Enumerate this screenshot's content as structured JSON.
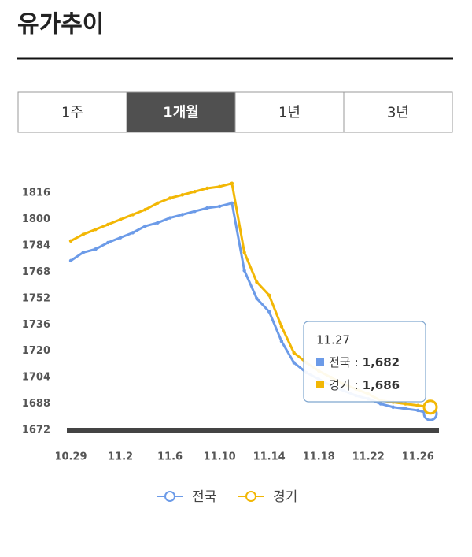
{
  "header": {
    "title": "유가추이"
  },
  "tabs": {
    "labels": [
      "1주",
      "1개월",
      "1년",
      "3년"
    ],
    "active": 1
  },
  "chart_data": {
    "type": "line",
    "categories": [
      "10.29",
      null,
      null,
      null,
      "11.2",
      null,
      null,
      null,
      "11.6",
      null,
      null,
      null,
      "11.10",
      null,
      null,
      null,
      "11.14",
      null,
      null,
      null,
      "11.18",
      null,
      null,
      null,
      "11.22",
      null,
      null,
      null,
      "11.26",
      null
    ],
    "series": [
      {
        "name": "전국",
        "color": "#6c9be8",
        "values": [
          1775,
          1780,
          1782,
          1786,
          1789,
          1792,
          1796,
          1798,
          1801,
          1803,
          1805,
          1807,
          1808,
          1810,
          1769,
          1752,
          1744,
          1726,
          1713,
          1707,
          1703,
          1699,
          1696,
          1693,
          1691,
          1688,
          1686,
          1685,
          1684,
          1682
        ]
      },
      {
        "name": "경기",
        "color": "#f2b705",
        "values": [
          1787,
          1791,
          1794,
          1797,
          1800,
          1803,
          1806,
          1810,
          1813,
          1815,
          1817,
          1819,
          1820,
          1822,
          1780,
          1762,
          1754,
          1735,
          1719,
          1713,
          1708,
          1704,
          1700,
          1697,
          1694,
          1690,
          1689,
          1688,
          1687,
          1686
        ]
      }
    ],
    "ylim": [
      1672,
      1830
    ],
    "yticks": [
      1672,
      1688,
      1704,
      1720,
      1736,
      1752,
      1768,
      1784,
      1800,
      1816
    ],
    "grid": false,
    "legend": "bottom",
    "tooltip": {
      "label": "11.27",
      "separator": ":",
      "value_labels": [
        "1,682",
        "1,686"
      ]
    }
  }
}
